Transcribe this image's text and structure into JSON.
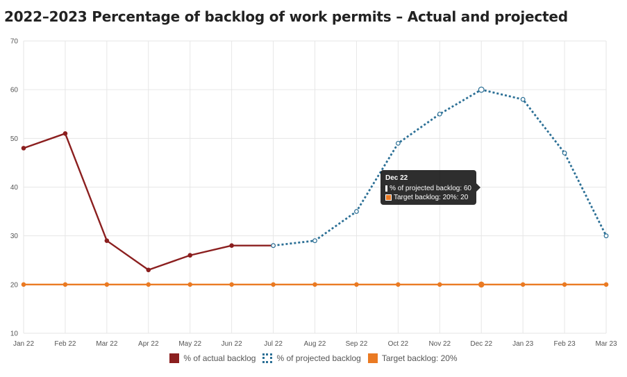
{
  "title": "2022–2023 Percentage of backlog of work permits – Actual and projected",
  "chart_data": {
    "type": "line",
    "categories": [
      "Jan 22",
      "Feb 22",
      "Mar 22",
      "Apr 22",
      "May 22",
      "Jun 22",
      "Jul 22",
      "Aug 22",
      "Sep 22",
      "Oct 22",
      "Nov 22",
      "Dec 22",
      "Jan 23",
      "Feb 23",
      "Mar 23"
    ],
    "ylim": [
      10,
      70
    ],
    "yticks": [
      10,
      20,
      30,
      40,
      50,
      60,
      70
    ],
    "grid": true,
    "legend_position": "bottom",
    "series": [
      {
        "name": "% of actual backlog",
        "color": "#8b1f1f",
        "style": "solid",
        "values": [
          48,
          51,
          29,
          23,
          26,
          28,
          28,
          null,
          null,
          null,
          null,
          null,
          null,
          null,
          null
        ]
      },
      {
        "name": "% of projected backlog",
        "color": "#2b6f95",
        "style": "dotted",
        "values": [
          null,
          null,
          null,
          null,
          null,
          null,
          28,
          29,
          35,
          49,
          55,
          60,
          58,
          47,
          30
        ]
      },
      {
        "name": "Target backlog: 20%",
        "color": "#ea7a23",
        "style": "solid",
        "values": [
          20,
          20,
          20,
          20,
          20,
          20,
          20,
          20,
          20,
          20,
          20,
          20,
          20,
          20,
          20
        ]
      }
    ]
  },
  "legend": {
    "actual": "% of actual backlog",
    "projected": "% of projected backlog",
    "target": "Target backlog: 20%"
  },
  "tooltip": {
    "title": "Dec 22",
    "projected": "% of projected backlog: 60",
    "target": "Target backlog: 20%: 20"
  }
}
